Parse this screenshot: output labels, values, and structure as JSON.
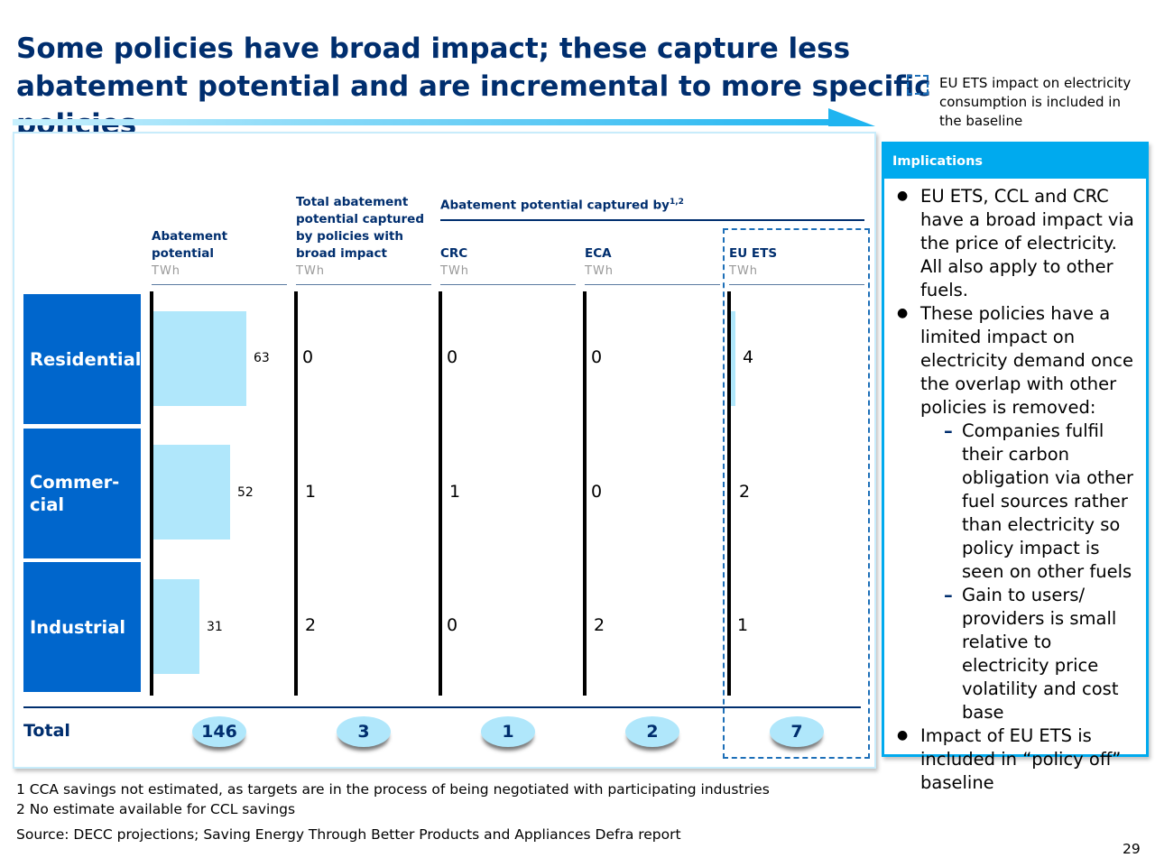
{
  "title": "Some policies have broad impact; these capture less abatement potential and are incremental to more specific policies",
  "legend": {
    "text": "EU ETS impact on electricity consumption is included in the baseline",
    "color": "#1d6fb8"
  },
  "chart_data": {
    "type": "bar",
    "columns": [
      {
        "label": "Abatement potential",
        "unit": "TWh"
      },
      {
        "label": "Total abatement potential captured by policies with broad impact",
        "unit": "TWh"
      },
      {
        "label": "CRC",
        "unit": "TWh"
      },
      {
        "label": "ECA",
        "unit": "TWh"
      },
      {
        "label": "EU ETS",
        "unit": "TWh"
      }
    ],
    "group_label": "Abatement potential captured by",
    "group_label_sup": "1,2",
    "categories": [
      "Residential",
      "Commer-cial",
      "Industrial"
    ],
    "series": [
      {
        "name": "Abatement potential",
        "values": [
          63,
          52,
          31
        ]
      },
      {
        "name": "Total abatement potential captured by policies with broad impact",
        "values": [
          0,
          1,
          2
        ]
      },
      {
        "name": "CRC",
        "values": [
          0,
          1,
          0
        ]
      },
      {
        "name": "ECA",
        "values": [
          0,
          0,
          2
        ]
      },
      {
        "name": "EU ETS",
        "values": [
          4,
          2,
          1
        ]
      }
    ],
    "total_label": "Total",
    "totals": [
      146,
      3,
      1,
      2,
      7
    ],
    "ylim": [
      0,
      63
    ],
    "colors": {
      "bar": "#b0e7fb",
      "row_label": "#0066cc",
      "heading": "#002e6e"
    }
  },
  "implications": {
    "title": "Implications",
    "bullets": [
      {
        "text": "EU ETS, CCL and CRC have a broad impact via the price of electricity. All also apply to other fuels.",
        "sub": []
      },
      {
        "text": "These policies have a limited impact on electricity demand once the overlap with other policies is removed:",
        "sub": [
          "Companies fulfil their carbon obligation via other fuel sources rather than electricity so policy impact is seen on other fuels",
          "Gain to users/ providers is small relative to electricity price volatility and cost base"
        ]
      },
      {
        "text": "Impact of EU ETS is included in “policy off” baseline",
        "sub": []
      }
    ]
  },
  "footnotes": [
    "1 CCA savings not estimated, as targets are in the process of being negotiated with participating industries",
    "2 No estimate available for CCL savings"
  ],
  "source": "Source: DECC projections; Saving Energy Through Better Products and Appliances Defra report",
  "page_number": "29"
}
